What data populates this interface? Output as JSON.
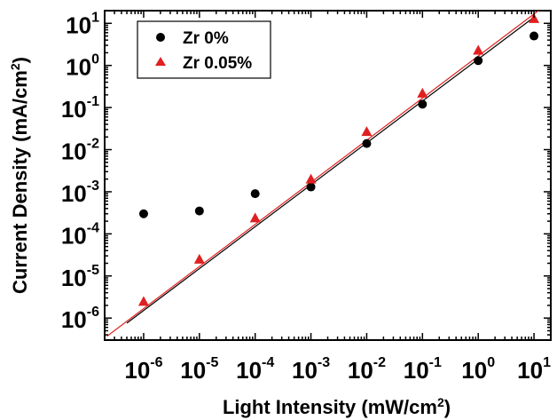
{
  "chart_data": {
    "type": "scatter",
    "x_scale": "log",
    "y_scale": "log",
    "xlabel": {
      "base": "Light Intensity (mW/cm",
      "sup": "2",
      "tail": ")"
    },
    "ylabel": {
      "base": "Current Density (mA/cm",
      "sup": "2",
      "tail": ")"
    },
    "xlim": [
      2e-07,
      20
    ],
    "ylim": [
      3e-07,
      20
    ],
    "x_ticks": [
      {
        "value": 1e-06,
        "base": "10",
        "exp": "-6"
      },
      {
        "value": 1e-05,
        "base": "10",
        "exp": "-5"
      },
      {
        "value": 0.0001,
        "base": "10",
        "exp": "-4"
      },
      {
        "value": 0.001,
        "base": "10",
        "exp": "-3"
      },
      {
        "value": 0.01,
        "base": "10",
        "exp": "-2"
      },
      {
        "value": 0.1,
        "base": "10",
        "exp": "-1"
      },
      {
        "value": 1,
        "base": "10",
        "exp": "0"
      },
      {
        "value": 10,
        "base": "10",
        "exp": "1"
      }
    ],
    "y_ticks": [
      {
        "value": 1e-06,
        "base": "10",
        "exp": "-6"
      },
      {
        "value": 1e-05,
        "base": "10",
        "exp": "-5"
      },
      {
        "value": 0.0001,
        "base": "10",
        "exp": "-4"
      },
      {
        "value": 0.001,
        "base": "10",
        "exp": "-3"
      },
      {
        "value": 0.01,
        "base": "10",
        "exp": "-2"
      },
      {
        "value": 0.1,
        "base": "10",
        "exp": "-1"
      },
      {
        "value": 1,
        "base": "10",
        "exp": "0"
      },
      {
        "value": 10,
        "base": "10",
        "exp": "1"
      }
    ],
    "legend_position": "top-left",
    "series": [
      {
        "name": "Zr 0%",
        "marker": "circle",
        "color": "#000000",
        "points": [
          {
            "x": 1e-06,
            "y": 0.0003
          },
          {
            "x": 1e-05,
            "y": 0.00035
          },
          {
            "x": 0.0001,
            "y": 0.0009
          },
          {
            "x": 0.001,
            "y": 0.0013
          },
          {
            "x": 0.01,
            "y": 0.014
          },
          {
            "x": 0.1,
            "y": 0.12
          },
          {
            "x": 1,
            "y": 1.3
          },
          {
            "x": 10,
            "y": 5.0
          }
        ],
        "fit_line": {
          "color": "#000000",
          "x": [
            5e-07,
            10
          ],
          "y": [
            7.6e-07,
            14
          ]
        }
      },
      {
        "name": "Zr 0.05%",
        "marker": "triangle",
        "color": "#e02020",
        "points": [
          {
            "x": 1e-06,
            "y": 2.5e-06
          },
          {
            "x": 1e-05,
            "y": 2.5e-05
          },
          {
            "x": 0.0001,
            "y": 0.00024
          },
          {
            "x": 0.001,
            "y": 0.002
          },
          {
            "x": 0.01,
            "y": 0.027
          },
          {
            "x": 0.1,
            "y": 0.22
          },
          {
            "x": 1,
            "y": 2.3
          },
          {
            "x": 10,
            "y": 13
          }
        ],
        "fit_line": {
          "color": "#e02020",
          "x": [
            2.2e-07,
            12
          ],
          "y": [
            3.7e-07,
            20
          ]
        }
      }
    ]
  }
}
